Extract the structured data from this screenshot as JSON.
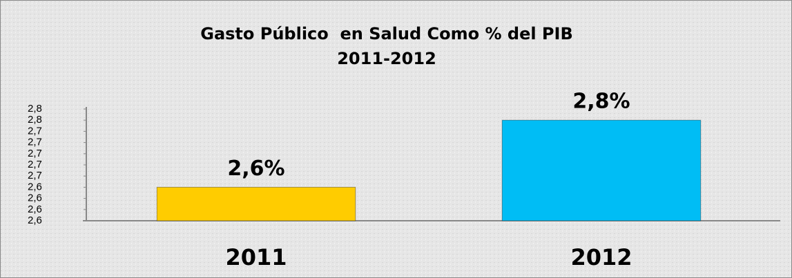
{
  "chart_data": {
    "type": "bar",
    "title": "Gasto Público  en Salud Como % del PIB",
    "subtitle": "2011-2012",
    "categories": [
      "2011",
      "2012"
    ],
    "values": [
      2.64,
      2.76
    ],
    "value_labels": [
      "2,6%",
      "2,8%"
    ],
    "colors": [
      "#ffcc00",
      "#00bdf5"
    ],
    "ylim": [
      2.58,
      2.78
    ],
    "yticks": [
      {
        "value": 2.58,
        "label": "2,6"
      },
      {
        "value": 2.6,
        "label": "2,6"
      },
      {
        "value": 2.62,
        "label": "2,6"
      },
      {
        "value": 2.64,
        "label": "2,6"
      },
      {
        "value": 2.66,
        "label": "2,7"
      },
      {
        "value": 2.68,
        "label": "2,7"
      },
      {
        "value": 2.7,
        "label": "2,7"
      },
      {
        "value": 2.72,
        "label": "2,7"
      },
      {
        "value": 2.74,
        "label": "2,7"
      },
      {
        "value": 2.76,
        "label": "2,8"
      },
      {
        "value": 2.78,
        "label": "2,8"
      }
    ],
    "grid": false
  }
}
